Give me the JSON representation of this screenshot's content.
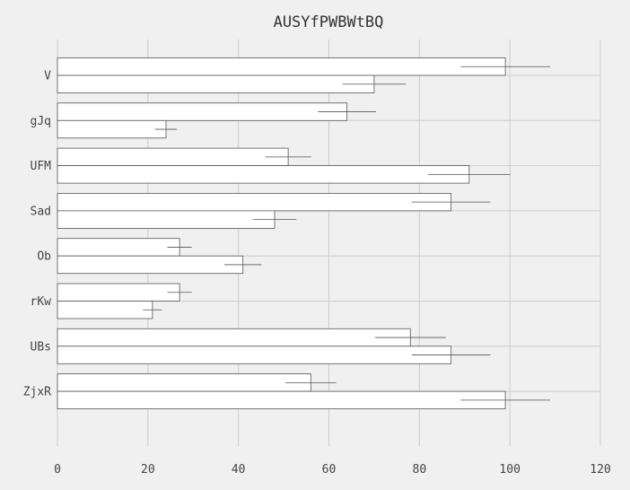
{
  "chart_data": {
    "type": "bar",
    "orientation": "horizontal",
    "title": "AUSYfPWBWtBQ",
    "xlabel": "",
    "ylabel": "",
    "categories": [
      "V",
      "gJq",
      "UFM",
      "Sad",
      "Ob",
      "rKw",
      "UBs",
      "ZjxR"
    ],
    "series": [
      {
        "values": [
          99,
          64,
          51,
          87,
          27,
          27,
          78,
          56
        ],
        "errors": [
          9.9,
          6.4,
          5.1,
          8.7,
          2.7,
          2.7,
          7.8,
          5.6
        ]
      },
      {
        "values": [
          70,
          24,
          91,
          48,
          41,
          21,
          87,
          99
        ],
        "errors": [
          7.0,
          2.4,
          9.1,
          4.8,
          4.1,
          2.1,
          8.7,
          9.9
        ]
      }
    ],
    "xlim": [
      0,
      120
    ],
    "xticks": [
      "0",
      "20",
      "40",
      "60",
      "80",
      "100",
      "120"
    ],
    "grid": true,
    "colors": {
      "background": "#f0f0f0",
      "bar_fill": "#ffffff",
      "bar_edge": "#555555",
      "grid": "#cbcbcb"
    }
  }
}
